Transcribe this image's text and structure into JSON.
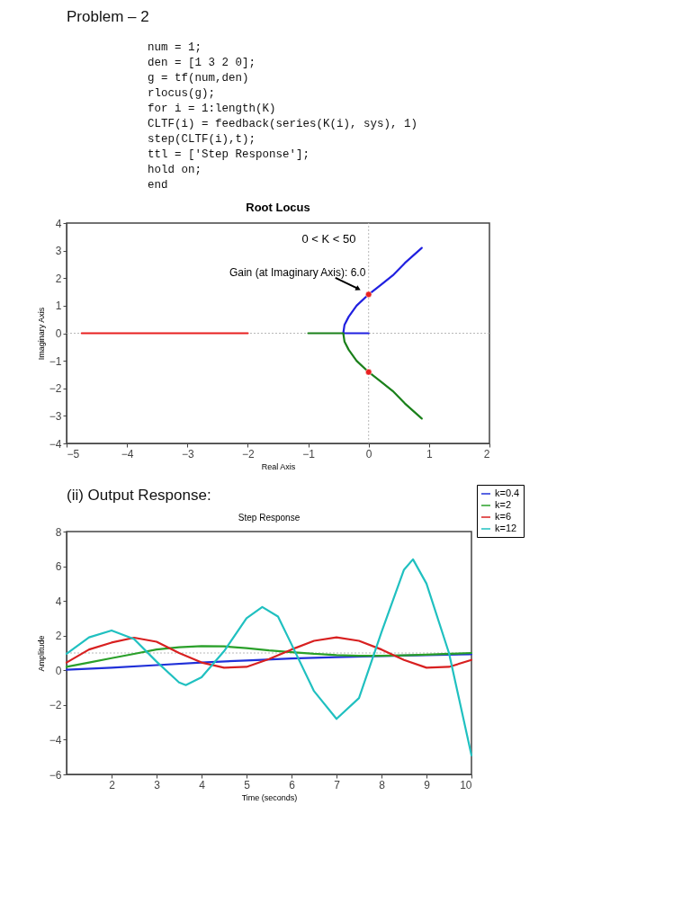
{
  "chart_data": [
    {
      "type": "line",
      "title": "Root Locus",
      "subtitle": "0 < K < 50",
      "xlabel": "Real Axis",
      "ylabel": "Imaginary Axis",
      "annotations": [
        "Problem – 2",
        "num = 1;",
        "den = [1 3 2 0];",
        "g = tf(num,den)",
        "rlocus(g);",
        "for i = 1:length(K)",
        "    CLTF(i) = feedback(series(K(i), sys), 1)",
        "    step(CLTF(i),t);",
        "    ttl = ['Step Response'];",
        "    hold on;",
        "end",
        {
          "text": "Gain (at Imaginary Axis): 6.0",
          "x": 0,
          "y": 1.41
        }
      ],
      "xlim": [
        -5,
        2
      ],
      "ylim": [
        -4,
        4
      ],
      "xticks": [
        -5,
        -4,
        -3,
        -2,
        -1,
        0,
        1,
        2
      ],
      "yticks": [
        -4,
        -3,
        -2,
        -1,
        0,
        1,
        2,
        3,
        4
      ],
      "grid": false,
      "legend": false,
      "ref_lines": [
        {
          "axis": "x",
          "value": 0,
          "color": "#b8b8b8",
          "line_style": "dotted"
        },
        {
          "axis": "y",
          "value": 0,
          "color": "#b8b8b8",
          "line_style": "dotted"
        }
      ],
      "series": [
        {
          "color": "#e82020",
          "x": [
            -2,
            -3,
            -4,
            -4.75
          ],
          "values": [
            0,
            0,
            0,
            0
          ]
        },
        {
          "color": "#2020e0",
          "x": [
            0,
            -0.2,
            -0.42,
            -0.4,
            -0.33,
            -0.2,
            0,
            0.2,
            0.4,
            0.6,
            0.88
          ],
          "values": [
            0,
            0,
            0,
            0.3,
            0.6,
            1.0,
            1.41,
            1.75,
            2.1,
            2.55,
            3.1
          ]
        },
        {
          "color": "#1a801a",
          "x": [
            -1,
            -0.7,
            -0.42,
            -0.4,
            -0.33,
            -0.2,
            0,
            0.2,
            0.4,
            0.6,
            0.88
          ],
          "values": [
            0,
            0,
            0,
            -0.3,
            -0.6,
            -1.0,
            -1.41,
            -1.75,
            -2.1,
            -2.55,
            -3.1
          ]
        },
        {
          "type": "scatter",
          "color": "#e82020",
          "x": [
            0,
            0
          ],
          "values": [
            1.41,
            -1.41
          ]
        }
      ]
    },
    {
      "type": "line",
      "title": "Step Response",
      "xlabel": "Time (seconds)",
      "ylabel": "Amplitude",
      "annotations": [
        "(ii) Output Response:"
      ],
      "xlim": [
        1,
        10
      ],
      "ylim": [
        -6,
        8
      ],
      "xticks": [
        2,
        3,
        4,
        5,
        6,
        7,
        8,
        9,
        10
      ],
      "yticks": [
        -6,
        -4,
        -2,
        0,
        2,
        4,
        6,
        8
      ],
      "grid": false,
      "legend": "top right",
      "ref_lines": [
        {
          "axis": "y",
          "value": 1,
          "color": "#b8b8b8",
          "line_style": "dotted"
        }
      ],
      "x": [
        1,
        1.5,
        2,
        2.5,
        3,
        3.5,
        4,
        4.5,
        5,
        5.5,
        6,
        6.5,
        7,
        7.5,
        8,
        8.5,
        9,
        9.5,
        10
      ],
      "series": [
        {
          "name": "k=0.4",
          "color": "#2030d8",
          "x": [
            1,
            2,
            3,
            4,
            5,
            6,
            7,
            8,
            9,
            10
          ],
          "values": [
            0.03,
            0.15,
            0.3,
            0.45,
            0.57,
            0.68,
            0.76,
            0.83,
            0.88,
            0.93
          ]
        },
        {
          "name": "k=2",
          "color": "#2aa02a",
          "values": [
            0.2,
            0.45,
            0.7,
            0.95,
            1.2,
            1.33,
            1.4,
            1.38,
            1.28,
            1.15,
            1.05,
            0.95,
            0.88,
            0.84,
            0.84,
            0.86,
            0.9,
            0.95,
            1.0
          ]
        },
        {
          "name": "k=6",
          "color": "#d82020",
          "values": [
            0.45,
            1.2,
            1.6,
            1.88,
            1.65,
            1.0,
            0.45,
            0.15,
            0.2,
            0.65,
            1.2,
            1.7,
            1.9,
            1.7,
            1.2,
            0.6,
            0.15,
            0.2,
            0.6
          ]
        },
        {
          "name": "k=12",
          "color": "#20c0c0",
          "x": [
            1,
            1.5,
            2,
            2.5,
            3,
            3.5,
            3.65,
            4,
            4.5,
            5,
            5.35,
            5.7,
            6,
            6.5,
            7,
            7.5,
            8,
            8.5,
            8.7,
            9,
            9.5,
            10
          ],
          "values": [
            0.95,
            1.9,
            2.3,
            1.8,
            0.5,
            -0.7,
            -0.85,
            -0.4,
            1.1,
            3.0,
            3.65,
            3.1,
            1.5,
            -1.2,
            -2.8,
            -1.6,
            2.2,
            5.8,
            6.4,
            5.0,
            1.0,
            -4.9
          ]
        }
      ]
    }
  ]
}
